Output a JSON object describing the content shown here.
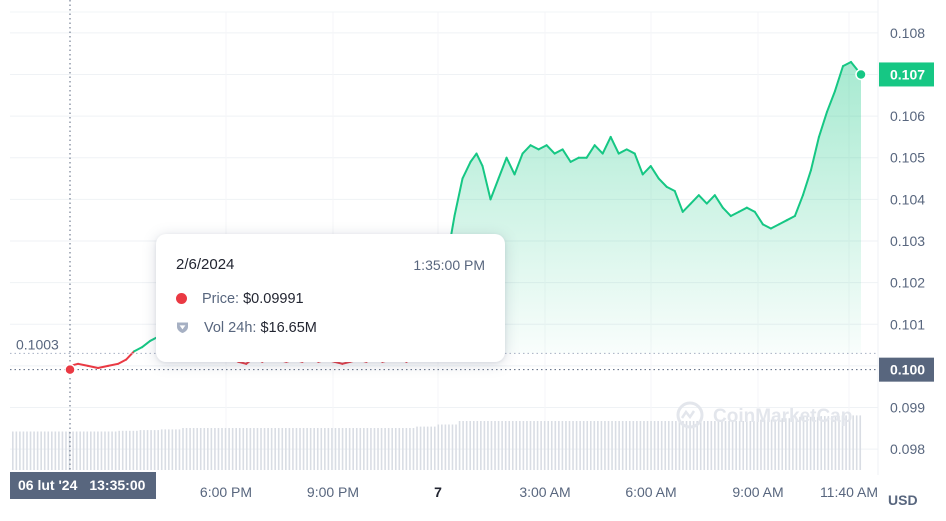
{
  "chart_data": {
    "type": "area",
    "x_tick_labels": [
      "6:00 PM",
      "9:00 PM",
      "7",
      "3:00 AM",
      "6:00 AM",
      "9:00 AM",
      "11:40 AM"
    ],
    "x_tick_bold": [
      "7"
    ],
    "y_tick_labels": [
      "0.108",
      "0.107",
      "0.106",
      "0.105",
      "0.104",
      "0.103",
      "0.102",
      "0.101",
      "0.100",
      "0.099",
      "0.098"
    ],
    "ylim": [
      0.0975,
      0.1085
    ],
    "y_unit": "USD",
    "last_price_label": "0.107",
    "crosshair_price_label": "0.100",
    "open_price_label": "0.1003",
    "open_price": 0.1003,
    "crosshair_x_label": {
      "date": "06 lut '24",
      "time": "13:35:00"
    },
    "series": [
      {
        "color_up": "#16c784",
        "color_down": "#ea3943",
        "points": [
          [
            0,
            0.1
          ],
          [
            0.4,
            0.10005
          ],
          [
            0.9,
            0.1
          ],
          [
            1.4,
            0.09995
          ],
          [
            1.9,
            0.1
          ],
          [
            2.4,
            0.10005
          ],
          [
            2.8,
            0.10015
          ],
          [
            3.2,
            0.10035
          ],
          [
            3.6,
            0.10045
          ],
          [
            4.0,
            0.1006
          ],
          [
            4.4,
            0.1007
          ],
          [
            4.8,
            0.10065
          ],
          [
            5.2,
            0.1006
          ],
          [
            5.6,
            0.10065
          ],
          [
            6.0,
            0.1006
          ],
          [
            6.4,
            0.10055
          ],
          [
            6.8,
            0.1005
          ],
          [
            7.2,
            0.1004
          ],
          [
            7.6,
            0.1003
          ],
          [
            8.0,
            0.1002
          ],
          [
            8.4,
            0.1001
          ],
          [
            8.8,
            0.10005
          ],
          [
            9.2,
            0.1002
          ],
          [
            9.6,
            0.1001
          ],
          [
            10.0,
            0.1002
          ],
          [
            10.4,
            0.10015
          ],
          [
            10.8,
            0.1001
          ],
          [
            11.2,
            0.10015
          ],
          [
            11.6,
            0.1001
          ],
          [
            12.0,
            0.1002
          ],
          [
            12.4,
            0.1001
          ],
          [
            12.8,
            0.10015
          ],
          [
            13.2,
            0.1001
          ],
          [
            13.6,
            0.10005
          ],
          [
            14.0,
            0.1001
          ],
          [
            14.4,
            0.10015
          ],
          [
            14.8,
            0.1001
          ],
          [
            15.2,
            0.1002
          ],
          [
            15.6,
            0.1001
          ],
          [
            16.0,
            0.10015
          ],
          [
            16.4,
            0.1002
          ],
          [
            16.8,
            0.1001
          ],
          [
            17.2,
            0.1002
          ],
          [
            17.6,
            0.10015
          ],
          [
            18.0,
            0.1002
          ],
          [
            18.4,
            0.1002
          ],
          [
            18.8,
            0.1025
          ],
          [
            19.2,
            0.1036
          ],
          [
            19.6,
            0.1045
          ],
          [
            20.0,
            0.1049
          ],
          [
            20.3,
            0.1051
          ],
          [
            20.6,
            0.1048
          ],
          [
            21.0,
            0.104
          ],
          [
            21.4,
            0.1045
          ],
          [
            21.8,
            0.105
          ],
          [
            22.2,
            0.1046
          ],
          [
            22.6,
            0.1051
          ],
          [
            23.0,
            0.1053
          ],
          [
            23.4,
            0.1052
          ],
          [
            23.8,
            0.1053
          ],
          [
            24.2,
            0.1051
          ],
          [
            24.6,
            0.1052
          ],
          [
            25.0,
            0.1049
          ],
          [
            25.4,
            0.105
          ],
          [
            25.8,
            0.105
          ],
          [
            26.2,
            0.1053
          ],
          [
            26.6,
            0.1051
          ],
          [
            27.0,
            0.1055
          ],
          [
            27.4,
            0.1051
          ],
          [
            27.8,
            0.1052
          ],
          [
            28.2,
            0.1051
          ],
          [
            28.6,
            0.1046
          ],
          [
            29.0,
            0.1048
          ],
          [
            29.4,
            0.1045
          ],
          [
            29.8,
            0.1043
          ],
          [
            30.2,
            0.1042
          ],
          [
            30.6,
            0.1037
          ],
          [
            31.0,
            0.1039
          ],
          [
            31.4,
            0.1041
          ],
          [
            31.8,
            0.1039
          ],
          [
            32.2,
            0.1041
          ],
          [
            32.6,
            0.1038
          ],
          [
            33.0,
            0.1036
          ],
          [
            33.4,
            0.1037
          ],
          [
            33.8,
            0.1038
          ],
          [
            34.2,
            0.1037
          ],
          [
            34.6,
            0.1034
          ],
          [
            35.0,
            0.1033
          ],
          [
            35.4,
            0.1034
          ],
          [
            35.8,
            0.1035
          ],
          [
            36.2,
            0.1036
          ],
          [
            36.6,
            0.1041
          ],
          [
            37.0,
            0.1047
          ],
          [
            37.4,
            0.1055
          ],
          [
            37.8,
            0.1061
          ],
          [
            38.2,
            0.1066
          ],
          [
            38.6,
            0.1072
          ],
          [
            39.0,
            0.1073
          ],
          [
            39.5,
            0.107
          ]
        ],
        "crosshair_point": [
          0,
          0.09991
        ]
      }
    ],
    "volume": [
      0.55,
      0.55,
      0.55,
      0.55,
      0.55,
      0.56,
      0.57,
      0.58,
      0.6,
      0.6,
      0.6,
      0.6,
      0.6,
      0.6,
      0.6,
      0.6,
      0.6,
      0.6,
      0.6,
      0.62,
      0.65,
      0.7,
      0.7,
      0.7,
      0.7,
      0.7,
      0.7,
      0.7,
      0.7,
      0.7,
      0.7,
      0.7,
      0.7,
      0.7,
      0.7,
      0.72,
      0.74,
      0.76,
      0.77,
      0.78
    ],
    "watermark": "CoinMarketCap",
    "grid": true
  },
  "tooltip": {
    "date": "2/6/2024",
    "time": "1:35:00 PM",
    "price_label": "Price:",
    "price_value": "$0.09991",
    "vol_label": "Vol 24h:",
    "vol_value": "$16.65M"
  }
}
